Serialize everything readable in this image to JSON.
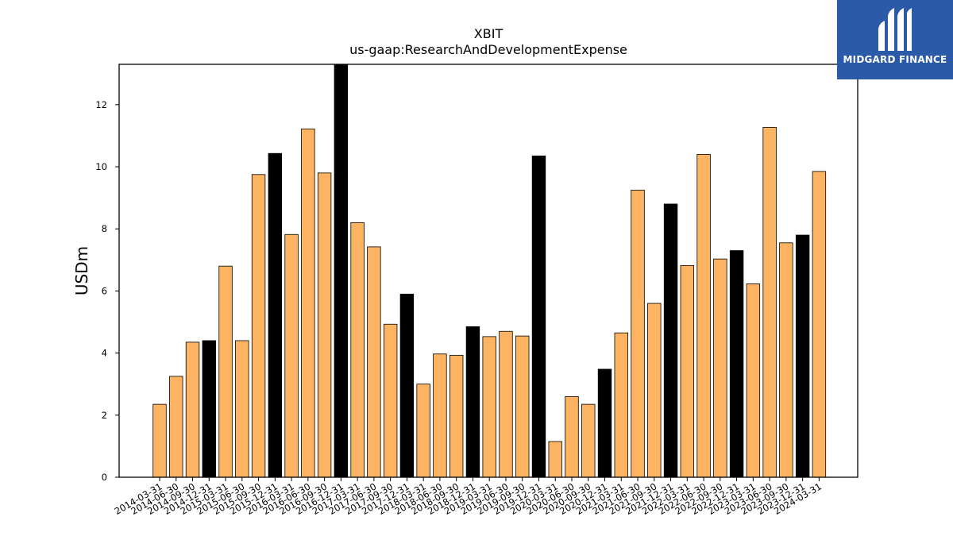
{
  "chart_data": {
    "type": "bar",
    "title": "XBIT",
    "subtitle": "us-gaap:ResearchAndDevelopmentExpense",
    "xlabel": "",
    "ylabel": "USDm",
    "ylim": [
      0,
      13.3
    ],
    "yticks": [
      0,
      2,
      4,
      6,
      8,
      10,
      12
    ],
    "grid": false,
    "categories": [
      "2014-03-31",
      "2014-06-30",
      "2014-09-30",
      "2014-12-31",
      "2015-03-31",
      "2015-06-30",
      "2015-09-30",
      "2015-12-31",
      "2016-03-31",
      "2016-06-30",
      "2016-09-30",
      "2016-12-31",
      "2017-03-31",
      "2017-06-30",
      "2017-09-30",
      "2017-12-31",
      "2018-03-31",
      "2018-06-30",
      "2018-09-30",
      "2018-12-31",
      "2019-03-31",
      "2019-06-30",
      "2019-09-30",
      "2019-12-31",
      "2020-03-31",
      "2020-06-30",
      "2020-09-30",
      "2020-12-31",
      "2021-03-31",
      "2021-06-30",
      "2021-09-30",
      "2021-12-31",
      "2022-03-31",
      "2022-06-30",
      "2022-09-30",
      "2022-12-31",
      "2023-03-31",
      "2023-06-30",
      "2023-09-30",
      "2023-12-31",
      "2024-03-31"
    ],
    "values": [
      2.35,
      3.25,
      4.35,
      4.4,
      6.8,
      4.4,
      9.75,
      10.43,
      7.82,
      11.22,
      9.8,
      13.3,
      8.2,
      7.42,
      4.93,
      5.9,
      3.0,
      3.97,
      3.93,
      4.85,
      4.53,
      4.7,
      4.55,
      10.35,
      1.15,
      2.6,
      2.35,
      3.48,
      4.65,
      9.25,
      5.6,
      8.8,
      6.82,
      10.4,
      7.03,
      7.3,
      6.23,
      11.27,
      7.55,
      7.8,
      9.85
    ],
    "highlight_every": 4,
    "highlight_offset": 3,
    "colors": {
      "bar": "#fdb462",
      "highlight": "#000000",
      "edge": "#000000"
    }
  },
  "logo": {
    "text": "MIDGARD FINANCE",
    "background": "#2b5aa8"
  }
}
